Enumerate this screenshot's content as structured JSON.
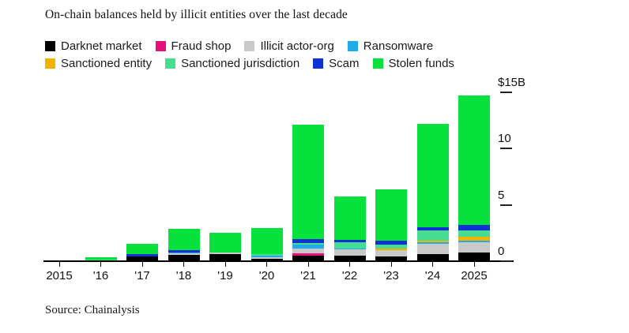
{
  "title": "On-chain balances held by illicit entities over the last decade",
  "source": "Source: Chainalysis",
  "legend": {
    "position": "top",
    "rows": [
      [
        "darknet_market",
        "fraud_shop",
        "illicit_actor_org",
        "ransomware"
      ],
      [
        "sanctioned_entity",
        "sanctioned_jurisdiction",
        "scam",
        "stolen_funds"
      ]
    ]
  },
  "colors": {
    "darknet_market": "#000000",
    "fraud_shop": "#e80e7d",
    "illicit_actor_org": "#c9c9c9",
    "ransomware": "#20ace9",
    "sanctioned_entity": "#f2b300",
    "sanctioned_jurisdiction": "#46dd91",
    "scam": "#1031d4",
    "stolen_funds": "#06e13c",
    "axis": "#000000",
    "background": "#ffffff"
  },
  "chart_data": {
    "type": "bar",
    "stacked": true,
    "unit": "USD billions",
    "grid": false,
    "legend_position": "top",
    "ylim": [
      0,
      15
    ],
    "categories": [
      "2015",
      "'16",
      "'17",
      "'18",
      "'19",
      "'20",
      "'21",
      "'22",
      "'23",
      "'24",
      "2025"
    ],
    "series": [
      {
        "key": "darknet_market",
        "name": "Darknet market",
        "color": "#000000",
        "values": [
          0,
          0,
          0.4,
          0.55,
          0.6,
          0.2,
          0.5,
          0.5,
          0.45,
          0.65,
          0.8
        ]
      },
      {
        "key": "fraud_shop",
        "name": "Fraud shop",
        "color": "#e80e7d",
        "values": [
          0,
          0,
          0,
          0,
          0,
          0,
          0.2,
          0,
          0,
          0,
          0
        ]
      },
      {
        "key": "illicit_actor_org",
        "name": "Illicit actor-org",
        "color": "#c9c9c9",
        "values": [
          0,
          0,
          0.05,
          0.15,
          0.15,
          0.15,
          0.45,
          0.55,
          0.5,
          0.9,
          0.9
        ]
      },
      {
        "key": "ransomware",
        "name": "Ransomware",
        "color": "#20ace9",
        "values": [
          0,
          0,
          0,
          0.05,
          0,
          0.15,
          0.3,
          0.05,
          0,
          0.15,
          0.15
        ]
      },
      {
        "key": "sanctioned_entity",
        "name": "Sanctioned entity",
        "color": "#f2b300",
        "values": [
          0,
          0,
          0,
          0,
          0,
          0,
          0,
          0,
          0.15,
          0.15,
          0.35
        ]
      },
      {
        "key": "sanctioned_jurisdiction",
        "name": "Sanctioned jurisdiction",
        "color": "#46dd91",
        "values": [
          0,
          0.15,
          0,
          0,
          0,
          0.15,
          0.2,
          0.6,
          0.4,
          0.9,
          0.55
        ]
      },
      {
        "key": "scam",
        "name": "Scam",
        "color": "#1031d4",
        "values": [
          0,
          0,
          0.15,
          0.2,
          0,
          0,
          0.3,
          0.2,
          0.3,
          0.3,
          0.5
        ]
      },
      {
        "key": "stolen_funds",
        "name": "Stolen funds",
        "color": "#06e13c",
        "values": [
          0.05,
          0.2,
          0.95,
          1.95,
          1.75,
          2.3,
          10.15,
          3.85,
          4.6,
          9.15,
          11.45
        ]
      }
    ],
    "totals": [
      0.05,
      0.35,
      1.55,
      2.9,
      2.5,
      2.95,
      12.1,
      5.75,
      6.4,
      12.2,
      14.7
    ],
    "yticks": [
      {
        "label": "$15B",
        "value": 15
      },
      {
        "label": "10",
        "value": 10
      },
      {
        "label": "5",
        "value": 5
      },
      {
        "label": "0",
        "value": 0
      }
    ]
  }
}
